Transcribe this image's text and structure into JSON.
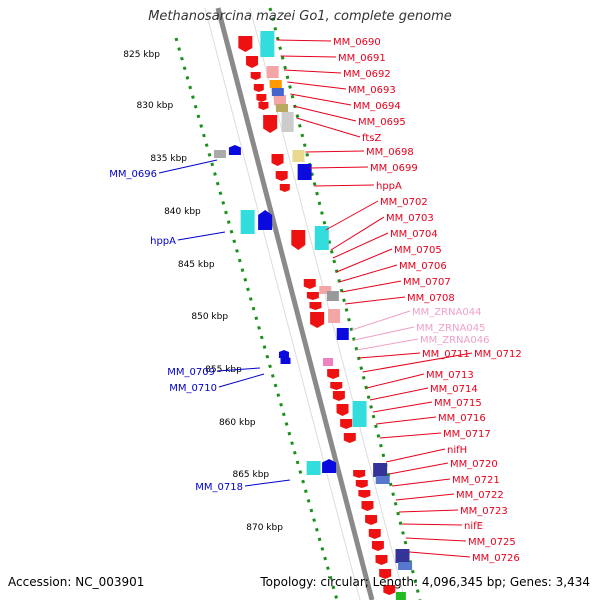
{
  "title": "Methanosarcina mazei Go1, complete genome",
  "footer": {
    "accession": "Accession: NC_003901",
    "summary": "Topology: circular; Length: 4,096,345 bp; Genes: 3,434"
  },
  "colors": {
    "backbone": "#8a8a8a",
    "tick_dots": "#1a8f1a",
    "gene_red": "#ee1111",
    "gene_blue": "#0a0adf",
    "gene_cyan": "#33dddd",
    "gene_pink": "#f080c0",
    "label_red": "#e8001c",
    "label_blue": "#0000cc",
    "label_pink": "#f0a0c8"
  },
  "scale_labels": [
    "825 kbp",
    "830 kbp",
    "835 kbp",
    "840 kbp",
    "845 kbp",
    "850 kbp",
    "855 kbp",
    "860 kbp",
    "865 kbp",
    "870 kbp"
  ],
  "right_labels": [
    {
      "text": "MM_0690",
      "color": "red"
    },
    {
      "text": "MM_0691",
      "color": "red"
    },
    {
      "text": "MM_0692",
      "color": "red"
    },
    {
      "text": "MM_0693",
      "color": "red"
    },
    {
      "text": "MM_0694",
      "color": "red"
    },
    {
      "text": "MM_0695",
      "color": "red"
    },
    {
      "text": "ftsZ",
      "color": "red"
    },
    {
      "text": "MM_0698",
      "color": "red"
    },
    {
      "text": "MM_0699",
      "color": "red"
    },
    {
      "text": "hppA",
      "color": "red"
    },
    {
      "text": "MM_0702",
      "color": "red"
    },
    {
      "text": "MM_0703",
      "color": "red"
    },
    {
      "text": "MM_0704",
      "color": "red"
    },
    {
      "text": "MM_0705",
      "color": "red"
    },
    {
      "text": "MM_0706",
      "color": "red"
    },
    {
      "text": "MM_0707",
      "color": "red"
    },
    {
      "text": "MM_0708",
      "color": "red"
    },
    {
      "text": "MM_ZRNA044",
      "color": "pink"
    },
    {
      "text": "MM_ZRNA045",
      "color": "pink"
    },
    {
      "text": "MM_ZRNA046",
      "color": "pink"
    },
    {
      "text": "MM_0711",
      "color": "red"
    },
    {
      "text": "MM_0712",
      "color": "red"
    },
    {
      "text": "MM_0713",
      "color": "red"
    },
    {
      "text": "MM_0714",
      "color": "red"
    },
    {
      "text": "MM_0715",
      "color": "red"
    },
    {
      "text": "MM_0716",
      "color": "red"
    },
    {
      "text": "MM_0717",
      "color": "red"
    },
    {
      "text": "nifH",
      "color": "red"
    },
    {
      "text": "MM_0720",
      "color": "red"
    },
    {
      "text": "MM_0721",
      "color": "red"
    },
    {
      "text": "MM_0722",
      "color": "red"
    },
    {
      "text": "MM_0723",
      "color": "red"
    },
    {
      "text": "nifE",
      "color": "red"
    },
    {
      "text": "MM_0725",
      "color": "red"
    },
    {
      "text": "MM_0726",
      "color": "red"
    }
  ],
  "left_labels": [
    {
      "text": "MM_0696",
      "color": "blue"
    },
    {
      "text": "hppA",
      "color": "blue"
    },
    {
      "text": "MM_0709",
      "color": "blue"
    },
    {
      "text": "MM_0710",
      "color": "blue"
    },
    {
      "text": "MM_0718",
      "color": "blue"
    }
  ]
}
